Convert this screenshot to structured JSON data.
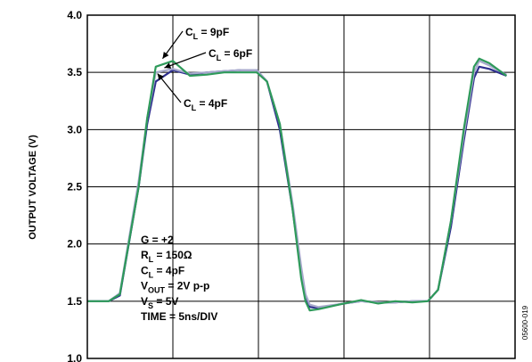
{
  "chart_data": {
    "type": "line",
    "ylabel": "OUTPUT VOLTAGE (V)",
    "ylim": [
      1.0,
      4.0
    ],
    "y_ticks": [
      "1.0",
      "1.5",
      "2.0",
      "2.5",
      "3.0",
      "3.5",
      "4.0"
    ],
    "x_divisions": 5,
    "grid": true,
    "x_unit": "ns",
    "series": [
      {
        "name": "CL = 4pF",
        "color": "#2e2f8e",
        "x": [
          0,
          1.5,
          2.5,
          3.8,
          6,
          6.5,
          7,
          8,
          10,
          12,
          14,
          16,
          18,
          19.8,
          21,
          22.5,
          24,
          25,
          25.5,
          26,
          27,
          30,
          32,
          34,
          36,
          38,
          39.8,
          41,
          42.5,
          44,
          45.2,
          45.8,
          47,
          49
        ],
        "values": [
          1.5,
          1.5,
          1.5,
          1.55,
          2.5,
          2.78,
          3.05,
          3.42,
          3.52,
          3.48,
          3.5,
          3.51,
          3.52,
          3.52,
          3.42,
          3.0,
          2.3,
          1.75,
          1.55,
          1.45,
          1.44,
          1.48,
          1.5,
          1.49,
          1.49,
          1.5,
          1.5,
          1.6,
          2.15,
          2.9,
          3.45,
          3.55,
          3.53,
          3.47
        ]
      },
      {
        "name": "CL = 6pF",
        "color": "#a7a9cc",
        "x": [
          0,
          1.5,
          2.5,
          3.8,
          6,
          6.5,
          7,
          8,
          10,
          12,
          14,
          16,
          18,
          19.8,
          21,
          22.5,
          24,
          25,
          25.5,
          26,
          27,
          30,
          32,
          34,
          36,
          38,
          39.8,
          41,
          42.5,
          44,
          45.2,
          45.8,
          47,
          49
        ],
        "values": [
          1.5,
          1.5,
          1.5,
          1.57,
          2.55,
          2.82,
          3.1,
          3.5,
          3.53,
          3.49,
          3.5,
          3.51,
          3.52,
          3.52,
          3.42,
          3.05,
          2.35,
          1.8,
          1.56,
          1.47,
          1.45,
          1.48,
          1.5,
          1.49,
          1.49,
          1.5,
          1.5,
          1.6,
          2.2,
          2.95,
          3.5,
          3.6,
          3.56,
          3.48
        ]
      },
      {
        "name": "CL = 9pF",
        "color": "#2e9a5a",
        "x": [
          0,
          1.5,
          2.5,
          3.8,
          6,
          6.5,
          7,
          8,
          10,
          12,
          14,
          16,
          18,
          19.8,
          21,
          22.5,
          24,
          25,
          25.5,
          26,
          27,
          30,
          32,
          34,
          36,
          38,
          39.8,
          41,
          42.5,
          44,
          45.2,
          45.8,
          47,
          49
        ],
        "values": [
          1.5,
          1.5,
          1.5,
          1.56,
          2.5,
          2.8,
          3.1,
          3.55,
          3.6,
          3.47,
          3.48,
          3.5,
          3.5,
          3.5,
          3.42,
          3.05,
          2.3,
          1.7,
          1.5,
          1.42,
          1.43,
          1.48,
          1.51,
          1.48,
          1.5,
          1.49,
          1.5,
          1.6,
          2.2,
          3.0,
          3.55,
          3.62,
          3.58,
          3.47
        ]
      }
    ],
    "annotations": [
      {
        "prefix": "C",
        "sub": "L",
        "suffix": " = 9pF",
        "x": 8.8,
        "y": 3.62,
        "direction": "upper-right"
      },
      {
        "prefix": "C",
        "sub": "L",
        "suffix": " = 6pF",
        "x": 9.0,
        "y": 3.54,
        "direction": "upper-right"
      },
      {
        "prefix": "C",
        "sub": "L",
        "suffix": " = 4pF",
        "x": 8.2,
        "y": 3.49,
        "direction": "lower-right"
      }
    ],
    "conditions": [
      {
        "prefix": "G = +2",
        "sub": "",
        "suffix": ""
      },
      {
        "prefix": "R",
        "sub": "L",
        "suffix": " = 150Ω"
      },
      {
        "prefix": "C",
        "sub": "L",
        "suffix": " = 4pF"
      },
      {
        "prefix": "V",
        "sub": "OUT",
        "suffix": " = 2V p-p"
      },
      {
        "prefix": "V",
        "sub": "S",
        "suffix": " = 5V"
      },
      {
        "prefix": "TIME = 5ns/DIV",
        "sub": "",
        "suffix": ""
      }
    ],
    "figure_id": "05600-019"
  }
}
